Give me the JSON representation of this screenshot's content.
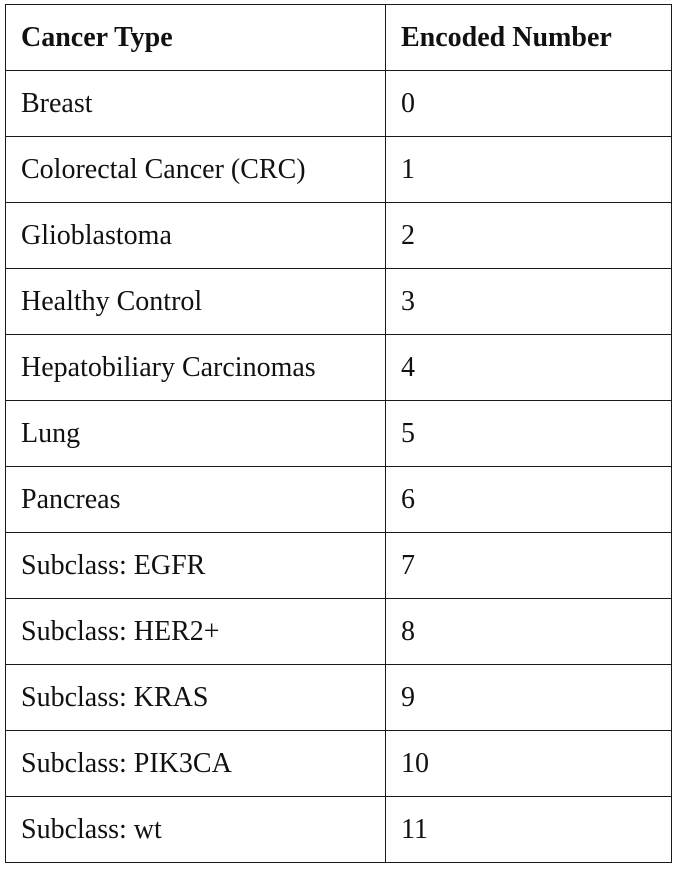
{
  "table": {
    "headers": [
      "Cancer Type",
      "Encoded Number"
    ],
    "rows": [
      [
        "Breast",
        "0"
      ],
      [
        "Colorectal Cancer (CRC)",
        "1"
      ],
      [
        "Glioblastoma",
        "2"
      ],
      [
        "Healthy Control",
        "3"
      ],
      [
        "Hepatobiliary Carcinomas",
        "4"
      ],
      [
        "Lung",
        "5"
      ],
      [
        "Pancreas",
        "6"
      ],
      [
        "Subclass: EGFR",
        "7"
      ],
      [
        "Subclass: HER2+",
        "8"
      ],
      [
        "Subclass: KRAS",
        "9"
      ],
      [
        "Subclass: PIK3CA",
        "10"
      ],
      [
        "Subclass: wt",
        "11"
      ]
    ]
  }
}
